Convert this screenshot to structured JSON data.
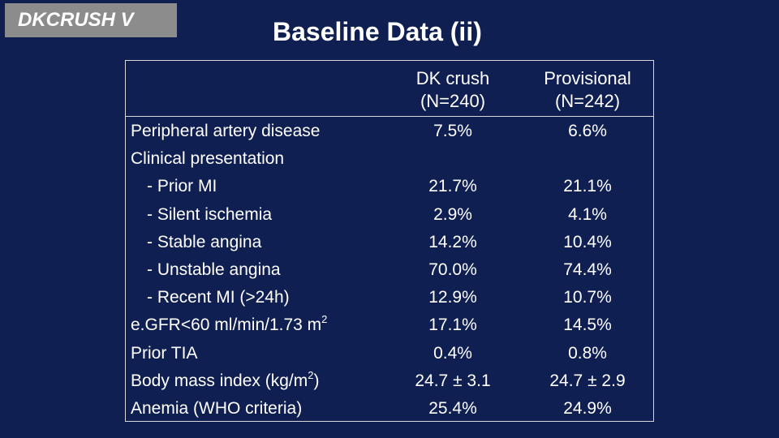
{
  "header": {
    "tag": "DKCRUSH V",
    "title": "Baseline Data (ii)"
  },
  "table": {
    "columns": [
      {
        "line1": "DK crush",
        "line2": "(N=240)"
      },
      {
        "line1": "Provisional",
        "line2": "(N=242)"
      }
    ],
    "rows": [
      {
        "label": "Peripheral artery disease",
        "sup": "",
        "suffix": "",
        "dk": "7.5%",
        "prov": "6.6%"
      },
      {
        "label": "Clinical presentation",
        "sup": "",
        "suffix": "",
        "dk": "",
        "prov": ""
      },
      {
        "label": "- Prior MI",
        "sup": "",
        "suffix": "",
        "dk": "21.7%",
        "prov": "21.1%"
      },
      {
        "label": "- Silent ischemia",
        "sup": "",
        "suffix": "",
        "dk": "2.9%",
        "prov": "4.1%"
      },
      {
        "label": "- Stable angina",
        "sup": "",
        "suffix": "",
        "dk": "14.2%",
        "prov": "10.4%"
      },
      {
        "label": "- Unstable angina",
        "sup": "",
        "suffix": "",
        "dk": "70.0%",
        "prov": "74.4%"
      },
      {
        "label": "- Recent MI (>24h)",
        "sup": "",
        "suffix": "",
        "dk": "12.9%",
        "prov": "10.7%"
      },
      {
        "label": "e.GFR<60 ml/min/1.73 m",
        "sup": "2",
        "suffix": "",
        "dk": "17.1%",
        "prov": "14.5%"
      },
      {
        "label": "Prior TIA",
        "sup": "",
        "suffix": "",
        "dk": "0.4%",
        "prov": "0.8%"
      },
      {
        "label": "Body mass index (kg/m",
        "sup": "2",
        "suffix": ")",
        "dk": "24.7 ± 3.1",
        "prov": "24.7 ± 2.9"
      },
      {
        "label": "Anemia (WHO criteria)",
        "sup": "",
        "suffix": "",
        "dk": "25.4%",
        "prov": "24.9%"
      }
    ]
  }
}
